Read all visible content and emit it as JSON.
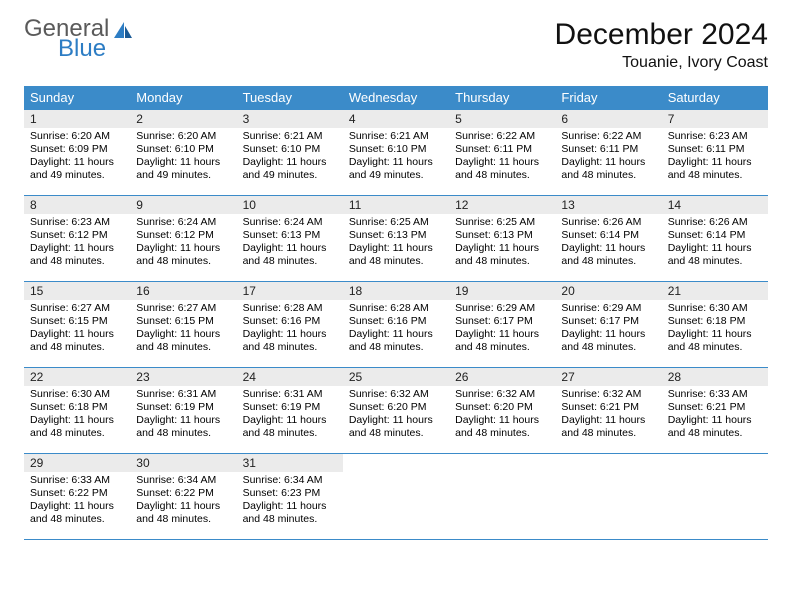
{
  "logo": {
    "line1": "General",
    "line2": "Blue"
  },
  "title": "December 2024",
  "location": "Touanie, Ivory Coast",
  "colors": {
    "header_bg": "#3b8bc9",
    "header_text": "#ffffff",
    "daynum_bg": "#ebebeb",
    "border": "#3b8bc9",
    "logo_gray": "#5a5a5a",
    "logo_blue": "#2d7dc4"
  },
  "weekdays": [
    "Sunday",
    "Monday",
    "Tuesday",
    "Wednesday",
    "Thursday",
    "Friday",
    "Saturday"
  ],
  "labels": {
    "sunrise": "Sunrise:",
    "sunset": "Sunset:",
    "daylight": "Daylight:"
  },
  "days": [
    {
      "n": 1,
      "sunrise": "6:20 AM",
      "sunset": "6:09 PM",
      "daylight": "11 hours and 49 minutes."
    },
    {
      "n": 2,
      "sunrise": "6:20 AM",
      "sunset": "6:10 PM",
      "daylight": "11 hours and 49 minutes."
    },
    {
      "n": 3,
      "sunrise": "6:21 AM",
      "sunset": "6:10 PM",
      "daylight": "11 hours and 49 minutes."
    },
    {
      "n": 4,
      "sunrise": "6:21 AM",
      "sunset": "6:10 PM",
      "daylight": "11 hours and 49 minutes."
    },
    {
      "n": 5,
      "sunrise": "6:22 AM",
      "sunset": "6:11 PM",
      "daylight": "11 hours and 48 minutes."
    },
    {
      "n": 6,
      "sunrise": "6:22 AM",
      "sunset": "6:11 PM",
      "daylight": "11 hours and 48 minutes."
    },
    {
      "n": 7,
      "sunrise": "6:23 AM",
      "sunset": "6:11 PM",
      "daylight": "11 hours and 48 minutes."
    },
    {
      "n": 8,
      "sunrise": "6:23 AM",
      "sunset": "6:12 PM",
      "daylight": "11 hours and 48 minutes."
    },
    {
      "n": 9,
      "sunrise": "6:24 AM",
      "sunset": "6:12 PM",
      "daylight": "11 hours and 48 minutes."
    },
    {
      "n": 10,
      "sunrise": "6:24 AM",
      "sunset": "6:13 PM",
      "daylight": "11 hours and 48 minutes."
    },
    {
      "n": 11,
      "sunrise": "6:25 AM",
      "sunset": "6:13 PM",
      "daylight": "11 hours and 48 minutes."
    },
    {
      "n": 12,
      "sunrise": "6:25 AM",
      "sunset": "6:13 PM",
      "daylight": "11 hours and 48 minutes."
    },
    {
      "n": 13,
      "sunrise": "6:26 AM",
      "sunset": "6:14 PM",
      "daylight": "11 hours and 48 minutes."
    },
    {
      "n": 14,
      "sunrise": "6:26 AM",
      "sunset": "6:14 PM",
      "daylight": "11 hours and 48 minutes."
    },
    {
      "n": 15,
      "sunrise": "6:27 AM",
      "sunset": "6:15 PM",
      "daylight": "11 hours and 48 minutes."
    },
    {
      "n": 16,
      "sunrise": "6:27 AM",
      "sunset": "6:15 PM",
      "daylight": "11 hours and 48 minutes."
    },
    {
      "n": 17,
      "sunrise": "6:28 AM",
      "sunset": "6:16 PM",
      "daylight": "11 hours and 48 minutes."
    },
    {
      "n": 18,
      "sunrise": "6:28 AM",
      "sunset": "6:16 PM",
      "daylight": "11 hours and 48 minutes."
    },
    {
      "n": 19,
      "sunrise": "6:29 AM",
      "sunset": "6:17 PM",
      "daylight": "11 hours and 48 minutes."
    },
    {
      "n": 20,
      "sunrise": "6:29 AM",
      "sunset": "6:17 PM",
      "daylight": "11 hours and 48 minutes."
    },
    {
      "n": 21,
      "sunrise": "6:30 AM",
      "sunset": "6:18 PM",
      "daylight": "11 hours and 48 minutes."
    },
    {
      "n": 22,
      "sunrise": "6:30 AM",
      "sunset": "6:18 PM",
      "daylight": "11 hours and 48 minutes."
    },
    {
      "n": 23,
      "sunrise": "6:31 AM",
      "sunset": "6:19 PM",
      "daylight": "11 hours and 48 minutes."
    },
    {
      "n": 24,
      "sunrise": "6:31 AM",
      "sunset": "6:19 PM",
      "daylight": "11 hours and 48 minutes."
    },
    {
      "n": 25,
      "sunrise": "6:32 AM",
      "sunset": "6:20 PM",
      "daylight": "11 hours and 48 minutes."
    },
    {
      "n": 26,
      "sunrise": "6:32 AM",
      "sunset": "6:20 PM",
      "daylight": "11 hours and 48 minutes."
    },
    {
      "n": 27,
      "sunrise": "6:32 AM",
      "sunset": "6:21 PM",
      "daylight": "11 hours and 48 minutes."
    },
    {
      "n": 28,
      "sunrise": "6:33 AM",
      "sunset": "6:21 PM",
      "daylight": "11 hours and 48 minutes."
    },
    {
      "n": 29,
      "sunrise": "6:33 AM",
      "sunset": "6:22 PM",
      "daylight": "11 hours and 48 minutes."
    },
    {
      "n": 30,
      "sunrise": "6:34 AM",
      "sunset": "6:22 PM",
      "daylight": "11 hours and 48 minutes."
    },
    {
      "n": 31,
      "sunrise": "6:34 AM",
      "sunset": "6:23 PM",
      "daylight": "11 hours and 48 minutes."
    }
  ],
  "layout": {
    "start_weekday": 0,
    "trailing_empty": 4
  }
}
